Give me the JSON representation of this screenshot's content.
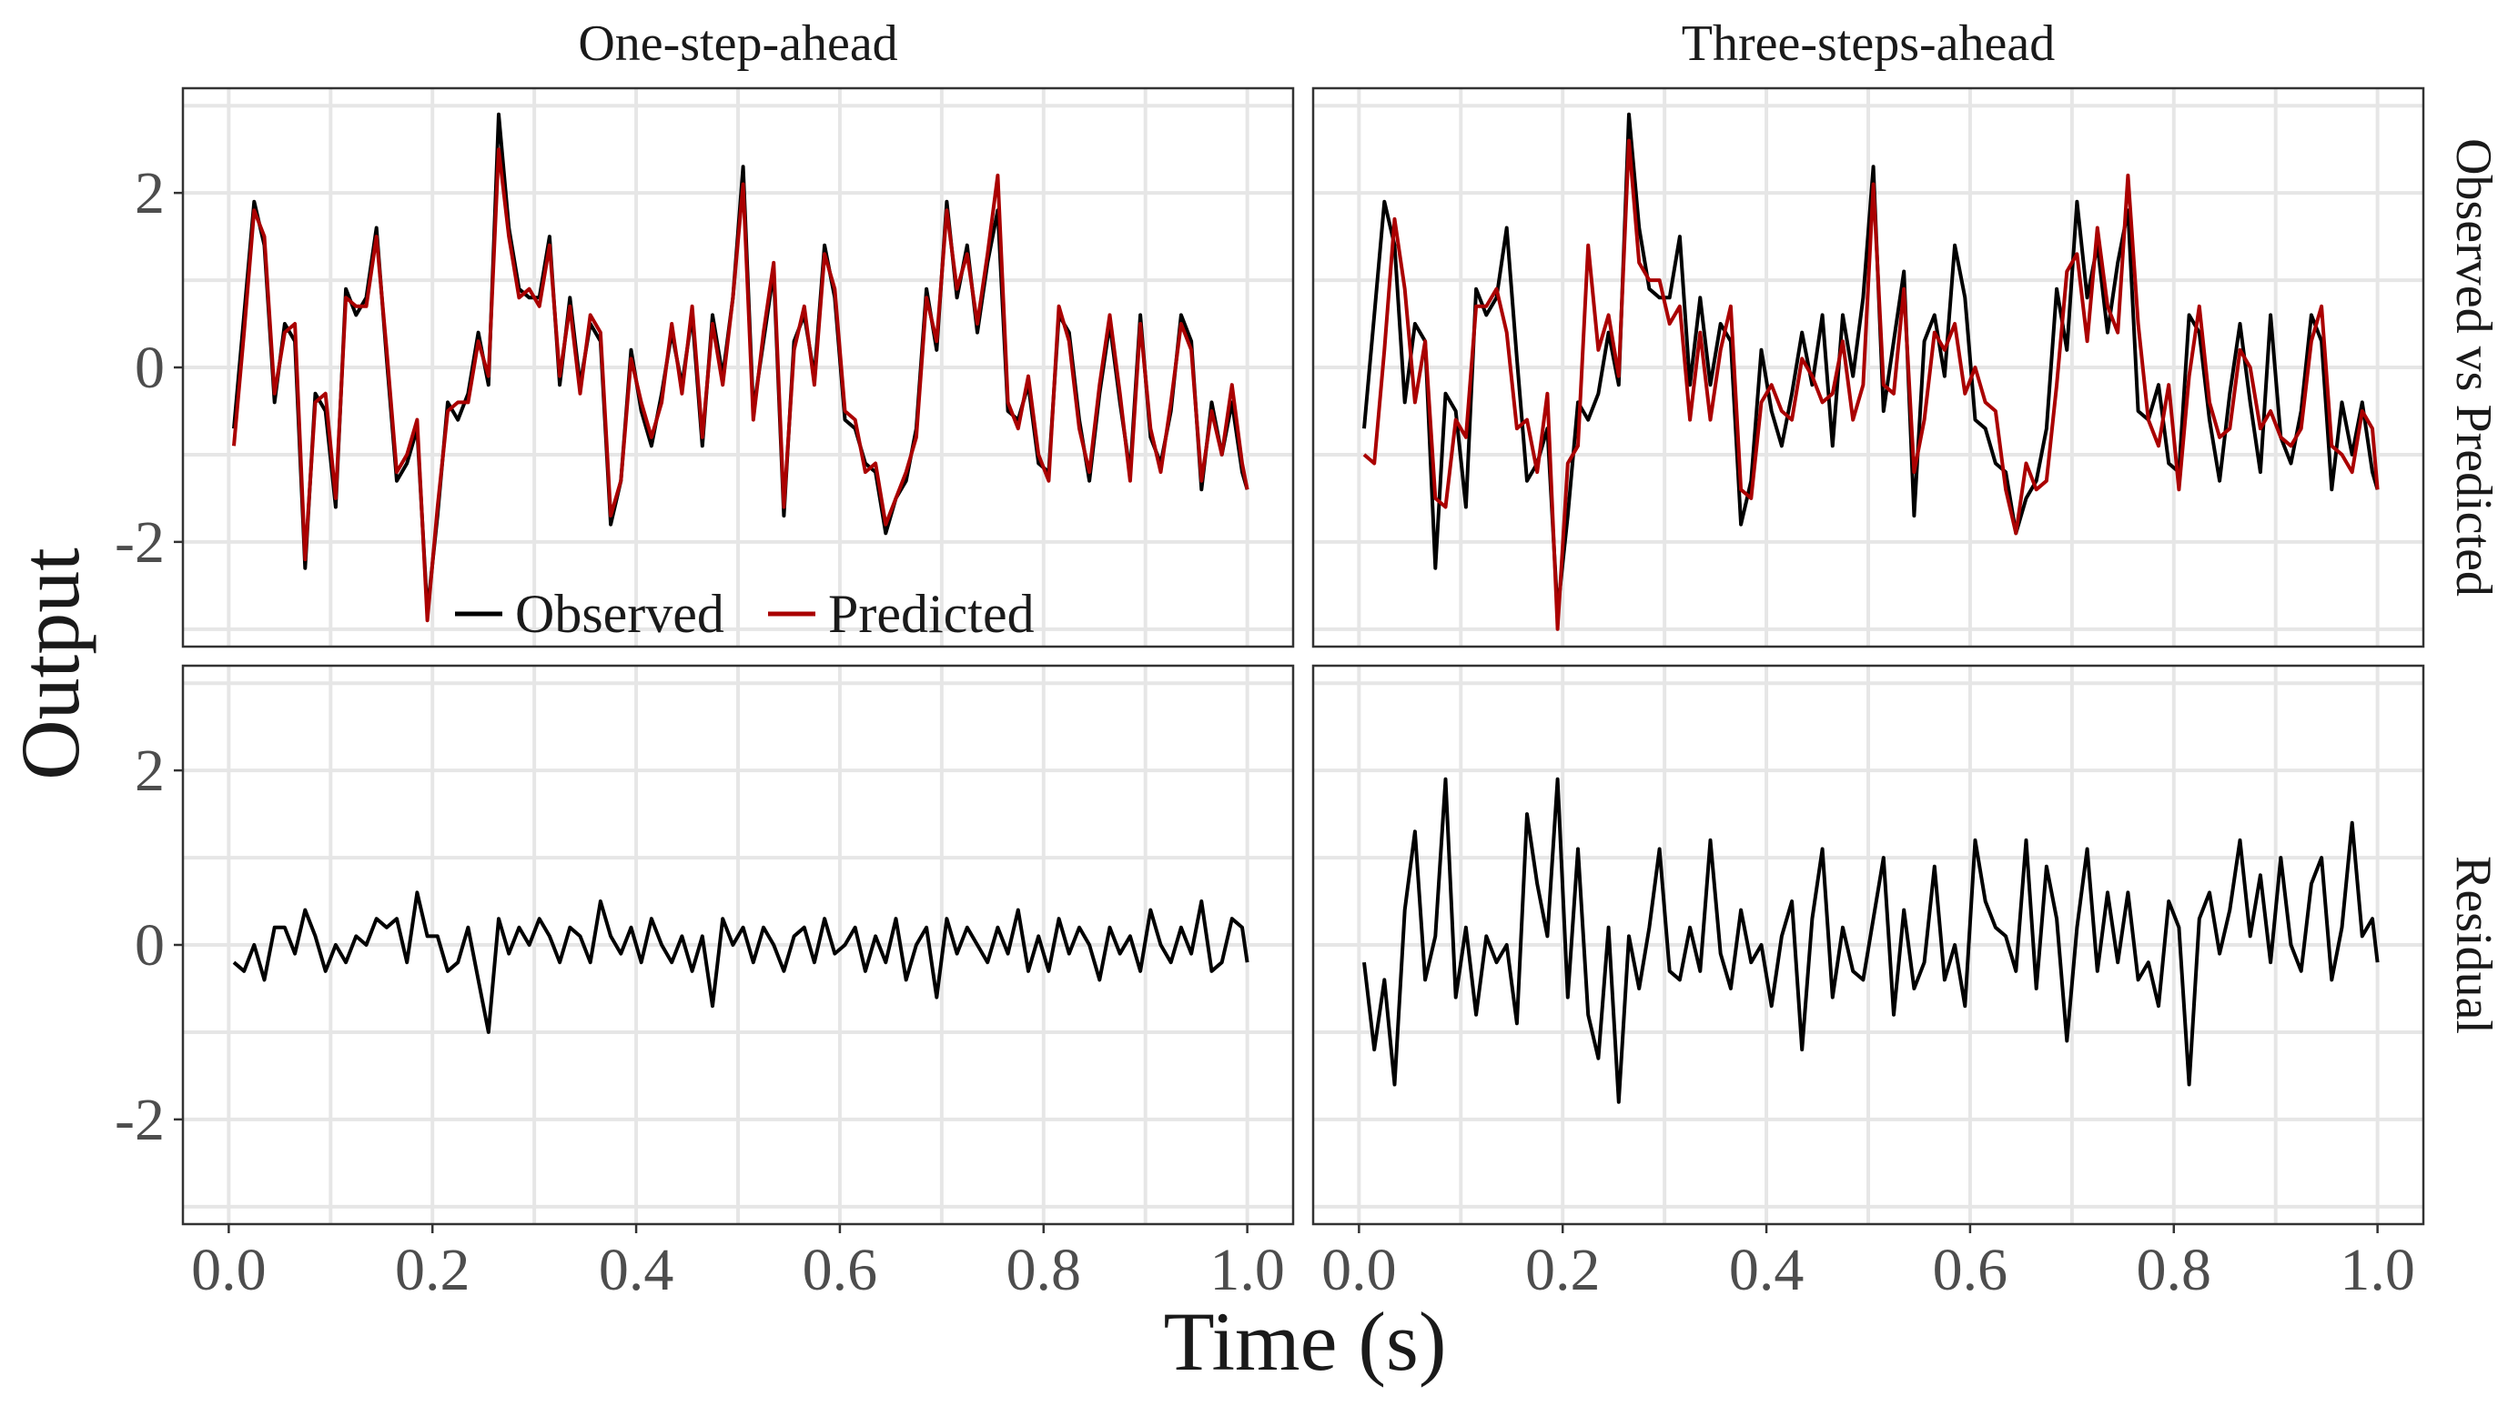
{
  "chart_data": {
    "type": "line",
    "layout": "facet-grid",
    "xlabel": "Time (s)",
    "ylabel": "Output",
    "xlim": [
      0,
      1
    ],
    "ylim": [
      -3.2,
      3.2
    ],
    "x_ticks": [
      "0.0",
      "0.2",
      "0.4",
      "0.6",
      "0.8",
      "1.0"
    ],
    "y_ticks": [
      "2",
      "0",
      "-2"
    ],
    "grid": true,
    "columns": [
      "One-step-ahead",
      "Three-steps-ahead"
    ],
    "rows": [
      "Observed vs Predicted",
      "Residual"
    ],
    "legend": {
      "placement": "bottom-center inside top-left panel",
      "entries": [
        "Observed",
        "Predicted"
      ]
    },
    "colors": {
      "Observed": "#000000",
      "Predicted": "#aa0000",
      "Residual": "#000000"
    },
    "x": [
      0.005,
      0.015,
      0.025,
      0.035,
      0.045,
      0.055,
      0.065,
      0.075,
      0.085,
      0.095,
      0.105,
      0.115,
      0.125,
      0.135,
      0.145,
      0.155,
      0.165,
      0.175,
      0.185,
      0.195,
      0.205,
      0.215,
      0.225,
      0.235,
      0.245,
      0.255,
      0.265,
      0.275,
      0.285,
      0.295,
      0.305,
      0.315,
      0.325,
      0.335,
      0.345,
      0.355,
      0.365,
      0.375,
      0.385,
      0.395,
      0.405,
      0.415,
      0.425,
      0.435,
      0.445,
      0.455,
      0.465,
      0.475,
      0.485,
      0.495,
      0.505,
      0.515,
      0.525,
      0.535,
      0.545,
      0.555,
      0.565,
      0.575,
      0.585,
      0.595,
      0.605,
      0.615,
      0.625,
      0.635,
      0.645,
      0.655,
      0.665,
      0.675,
      0.685,
      0.695,
      0.705,
      0.715,
      0.725,
      0.735,
      0.745,
      0.755,
      0.765,
      0.775,
      0.785,
      0.795,
      0.805,
      0.815,
      0.825,
      0.835,
      0.845,
      0.855,
      0.865,
      0.875,
      0.885,
      0.895,
      0.905,
      0.915,
      0.925,
      0.935,
      0.945,
      0.955,
      0.965,
      0.975,
      0.985,
      0.995,
      1.0
    ],
    "panels": [
      {
        "column": "One-step-ahead",
        "row": "Observed vs Predicted",
        "series": [
          {
            "name": "Observed",
            "values": [
              -0.7,
              0.6,
              1.9,
              1.4,
              -0.4,
              0.5,
              0.3,
              -2.3,
              -0.3,
              -0.5,
              -1.6,
              0.9,
              0.6,
              0.8,
              1.6,
              0.1,
              -1.3,
              -1.1,
              -0.7,
              -2.8,
              -1.7,
              -0.4,
              -0.6,
              -0.3,
              0.4,
              -0.2,
              2.9,
              1.6,
              0.9,
              0.8,
              0.8,
              1.5,
              -0.2,
              0.8,
              -0.2,
              0.5,
              0.3,
              -1.8,
              -1.3,
              0.2,
              -0.5,
              -0.9,
              -0.3,
              0.4,
              -0.2,
              0.6,
              -0.9,
              0.6,
              -0.1,
              0.8,
              2.3,
              -0.5,
              0.3,
              1.1,
              -1.7,
              0.3,
              0.6,
              -0.1,
              1.4,
              0.8,
              -0.6,
              -0.7,
              -1.1,
              -1.2,
              -1.9,
              -1.5,
              -1.3,
              -0.7,
              0.9,
              0.2,
              1.9,
              0.8,
              1.4,
              0.4,
              1.2,
              1.8,
              -0.5,
              -0.6,
              -0.2,
              -1.1,
              -1.2,
              0.6,
              0.4,
              -0.6,
              -1.3,
              -0.3,
              0.5,
              -0.4,
              -1.2,
              0.6,
              -0.8,
              -1.1,
              -0.5,
              0.6,
              0.3,
              -1.4,
              -0.4,
              -1.0,
              -0.4,
              -1.2,
              -1.4
            ]
          },
          {
            "name": "Predicted",
            "values": [
              -0.9,
              0.4,
              1.8,
              1.5,
              -0.3,
              0.4,
              0.5,
              -2.2,
              -0.4,
              -0.3,
              -1.5,
              0.8,
              0.7,
              0.7,
              1.5,
              0.2,
              -1.2,
              -1.0,
              -0.6,
              -2.9,
              -1.6,
              -0.5,
              -0.4,
              -0.4,
              0.3,
              -0.1,
              2.5,
              1.5,
              0.8,
              0.9,
              0.7,
              1.4,
              -0.1,
              0.7,
              -0.3,
              0.6,
              0.4,
              -1.7,
              -1.3,
              0.1,
              -0.4,
              -0.8,
              -0.4,
              0.5,
              -0.3,
              0.7,
              -0.8,
              0.5,
              -0.2,
              0.8,
              2.1,
              -0.6,
              0.4,
              1.2,
              -1.6,
              0.2,
              0.7,
              -0.2,
              1.3,
              0.9,
              -0.5,
              -0.6,
              -1.2,
              -1.1,
              -1.8,
              -1.5,
              -1.2,
              -0.8,
              0.8,
              0.3,
              1.8,
              0.9,
              1.3,
              0.5,
              1.3,
              2.2,
              -0.4,
              -0.7,
              -0.1,
              -1.0,
              -1.3,
              0.7,
              0.3,
              -0.7,
              -1.2,
              -0.2,
              0.6,
              -0.3,
              -1.3,
              0.5,
              -0.7,
              -1.2,
              -0.4,
              0.5,
              0.2,
              -1.3,
              -0.5,
              -1.0,
              -0.2,
              -1.1,
              -1.4
            ]
          }
        ]
      },
      {
        "column": "Three-steps-ahead",
        "row": "Observed vs Predicted",
        "series": [
          {
            "name": "Observed",
            "values": [
              -0.7,
              0.6,
              1.9,
              1.4,
              -0.4,
              0.5,
              0.3,
              -2.3,
              -0.3,
              -0.5,
              -1.6,
              0.9,
              0.6,
              0.8,
              1.6,
              0.1,
              -1.3,
              -1.1,
              -0.7,
              -2.8,
              -1.7,
              -0.4,
              -0.6,
              -0.3,
              0.4,
              -0.2,
              2.9,
              1.6,
              0.9,
              0.8,
              0.8,
              1.5,
              -0.2,
              0.8,
              -0.2,
              0.5,
              0.3,
              -1.8,
              -1.3,
              0.2,
              -0.5,
              -0.9,
              -0.3,
              0.4,
              -0.2,
              0.6,
              -0.9,
              0.6,
              -0.1,
              0.8,
              2.3,
              -0.5,
              0.3,
              1.1,
              -1.7,
              0.3,
              0.6,
              -0.1,
              1.4,
              0.8,
              -0.6,
              -0.7,
              -1.1,
              -1.2,
              -1.9,
              -1.5,
              -1.3,
              -0.7,
              0.9,
              0.2,
              1.9,
              0.8,
              1.4,
              0.4,
              1.2,
              1.8,
              -0.5,
              -0.6,
              -0.2,
              -1.1,
              -1.2,
              0.6,
              0.4,
              -0.6,
              -1.3,
              -0.3,
              0.5,
              -0.4,
              -1.2,
              0.6,
              -0.8,
              -1.1,
              -0.5,
              0.6,
              0.3,
              -1.4,
              -0.4,
              -1.0,
              -0.4,
              -1.2,
              -1.4
            ]
          },
          {
            "name": "Predicted",
            "values": [
              -1.0,
              -1.1,
              0.2,
              1.7,
              0.9,
              -0.4,
              0.3,
              -1.5,
              -1.6,
              -0.6,
              -0.8,
              0.7,
              0.7,
              0.9,
              0.4,
              -0.7,
              -0.6,
              -1.2,
              -0.3,
              -3.0,
              -1.1,
              -0.9,
              1.4,
              0.2,
              0.6,
              -0.1,
              2.6,
              1.2,
              1.0,
              1.0,
              0.5,
              0.7,
              -0.6,
              0.4,
              -0.6,
              0.2,
              0.7,
              -1.4,
              -1.5,
              -0.4,
              -0.2,
              -0.5,
              -0.6,
              0.1,
              -0.1,
              -0.4,
              -0.3,
              0.3,
              -0.6,
              -0.2,
              2.1,
              -0.2,
              -0.3,
              0.9,
              -1.2,
              -0.6,
              0.4,
              0.2,
              0.5,
              -0.3,
              0.0,
              -0.4,
              -0.5,
              -1.4,
              -1.9,
              -1.1,
              -1.4,
              -1.3,
              -0.2,
              1.1,
              1.3,
              0.3,
              1.6,
              0.7,
              0.4,
              2.2,
              0.5,
              -0.6,
              -0.9,
              -0.2,
              -1.4,
              -0.1,
              0.7,
              -0.4,
              -0.8,
              -0.7,
              0.2,
              0.0,
              -0.7,
              -0.5,
              -0.8,
              -0.9,
              -0.7,
              0.3,
              0.7,
              -0.9,
              -1.0,
              -1.2,
              -0.5,
              -0.7,
              -1.4
            ]
          }
        ]
      },
      {
        "column": "One-step-ahead",
        "row": "Residual",
        "series": [
          {
            "name": "Residual",
            "values": [
              -0.2,
              -0.3,
              0.0,
              -0.4,
              0.2,
              0.2,
              -0.1,
              0.4,
              0.1,
              -0.3,
              0.0,
              -0.2,
              0.1,
              0.0,
              0.3,
              0.2,
              0.3,
              -0.2,
              0.6,
              0.1,
              0.1,
              -0.3,
              -0.2,
              0.2,
              -0.4,
              -1.0,
              0.3,
              -0.1,
              0.2,
              0.0,
              0.3,
              0.1,
              -0.2,
              0.2,
              0.1,
              -0.2,
              0.5,
              0.1,
              -0.1,
              0.2,
              -0.2,
              0.3,
              0.0,
              -0.2,
              0.1,
              -0.3,
              0.1,
              -0.7,
              0.3,
              0.0,
              0.2,
              -0.2,
              0.2,
              0.0,
              -0.3,
              0.1,
              0.2,
              -0.2,
              0.3,
              -0.1,
              0.0,
              0.2,
              -0.3,
              0.1,
              -0.2,
              0.3,
              -0.4,
              0.0,
              0.2,
              -0.6,
              0.3,
              -0.1,
              0.2,
              0.0,
              -0.2,
              0.2,
              -0.1,
              0.4,
              -0.3,
              0.1,
              -0.3,
              0.3,
              -0.1,
              0.2,
              0.0,
              -0.4,
              0.2,
              -0.1,
              0.1,
              -0.3,
              0.4,
              0.0,
              -0.2,
              0.2,
              -0.1,
              0.5,
              -0.3,
              -0.2,
              0.3,
              0.2,
              -0.2
            ]
          }
        ]
      },
      {
        "column": "Three-steps-ahead",
        "row": "Residual",
        "series": [
          {
            "name": "Residual",
            "values": [
              -0.2,
              -1.2,
              -0.4,
              -1.6,
              0.4,
              1.3,
              -0.4,
              0.1,
              1.9,
              -0.6,
              0.2,
              -0.8,
              0.1,
              -0.2,
              0.0,
              -0.9,
              1.5,
              0.7,
              0.1,
              1.9,
              -0.6,
              1.1,
              -0.8,
              -1.3,
              0.2,
              -1.8,
              0.1,
              -0.5,
              0.2,
              1.1,
              -0.3,
              -0.4,
              0.2,
              -0.3,
              1.2,
              -0.1,
              -0.5,
              0.4,
              -0.2,
              0.0,
              -0.7,
              0.1,
              0.5,
              -1.2,
              0.3,
              1.1,
              -0.6,
              0.2,
              -0.3,
              -0.4,
              0.3,
              1.0,
              -0.8,
              0.4,
              -0.5,
              -0.2,
              0.9,
              -0.4,
              0.0,
              -0.7,
              1.2,
              0.5,
              0.2,
              0.1,
              -0.3,
              1.2,
              -0.5,
              0.9,
              0.3,
              -1.1,
              0.2,
              1.1,
              -0.3,
              0.6,
              -0.2,
              0.6,
              -0.4,
              -0.2,
              -0.7,
              0.5,
              0.2,
              -1.6,
              0.3,
              0.6,
              -0.1,
              0.4,
              1.2,
              0.1,
              0.8,
              -0.2,
              1.0,
              0.0,
              -0.3,
              0.7,
              1.0,
              -0.4,
              0.2,
              1.4,
              0.1,
              0.3,
              -0.2
            ]
          }
        ]
      }
    ]
  }
}
